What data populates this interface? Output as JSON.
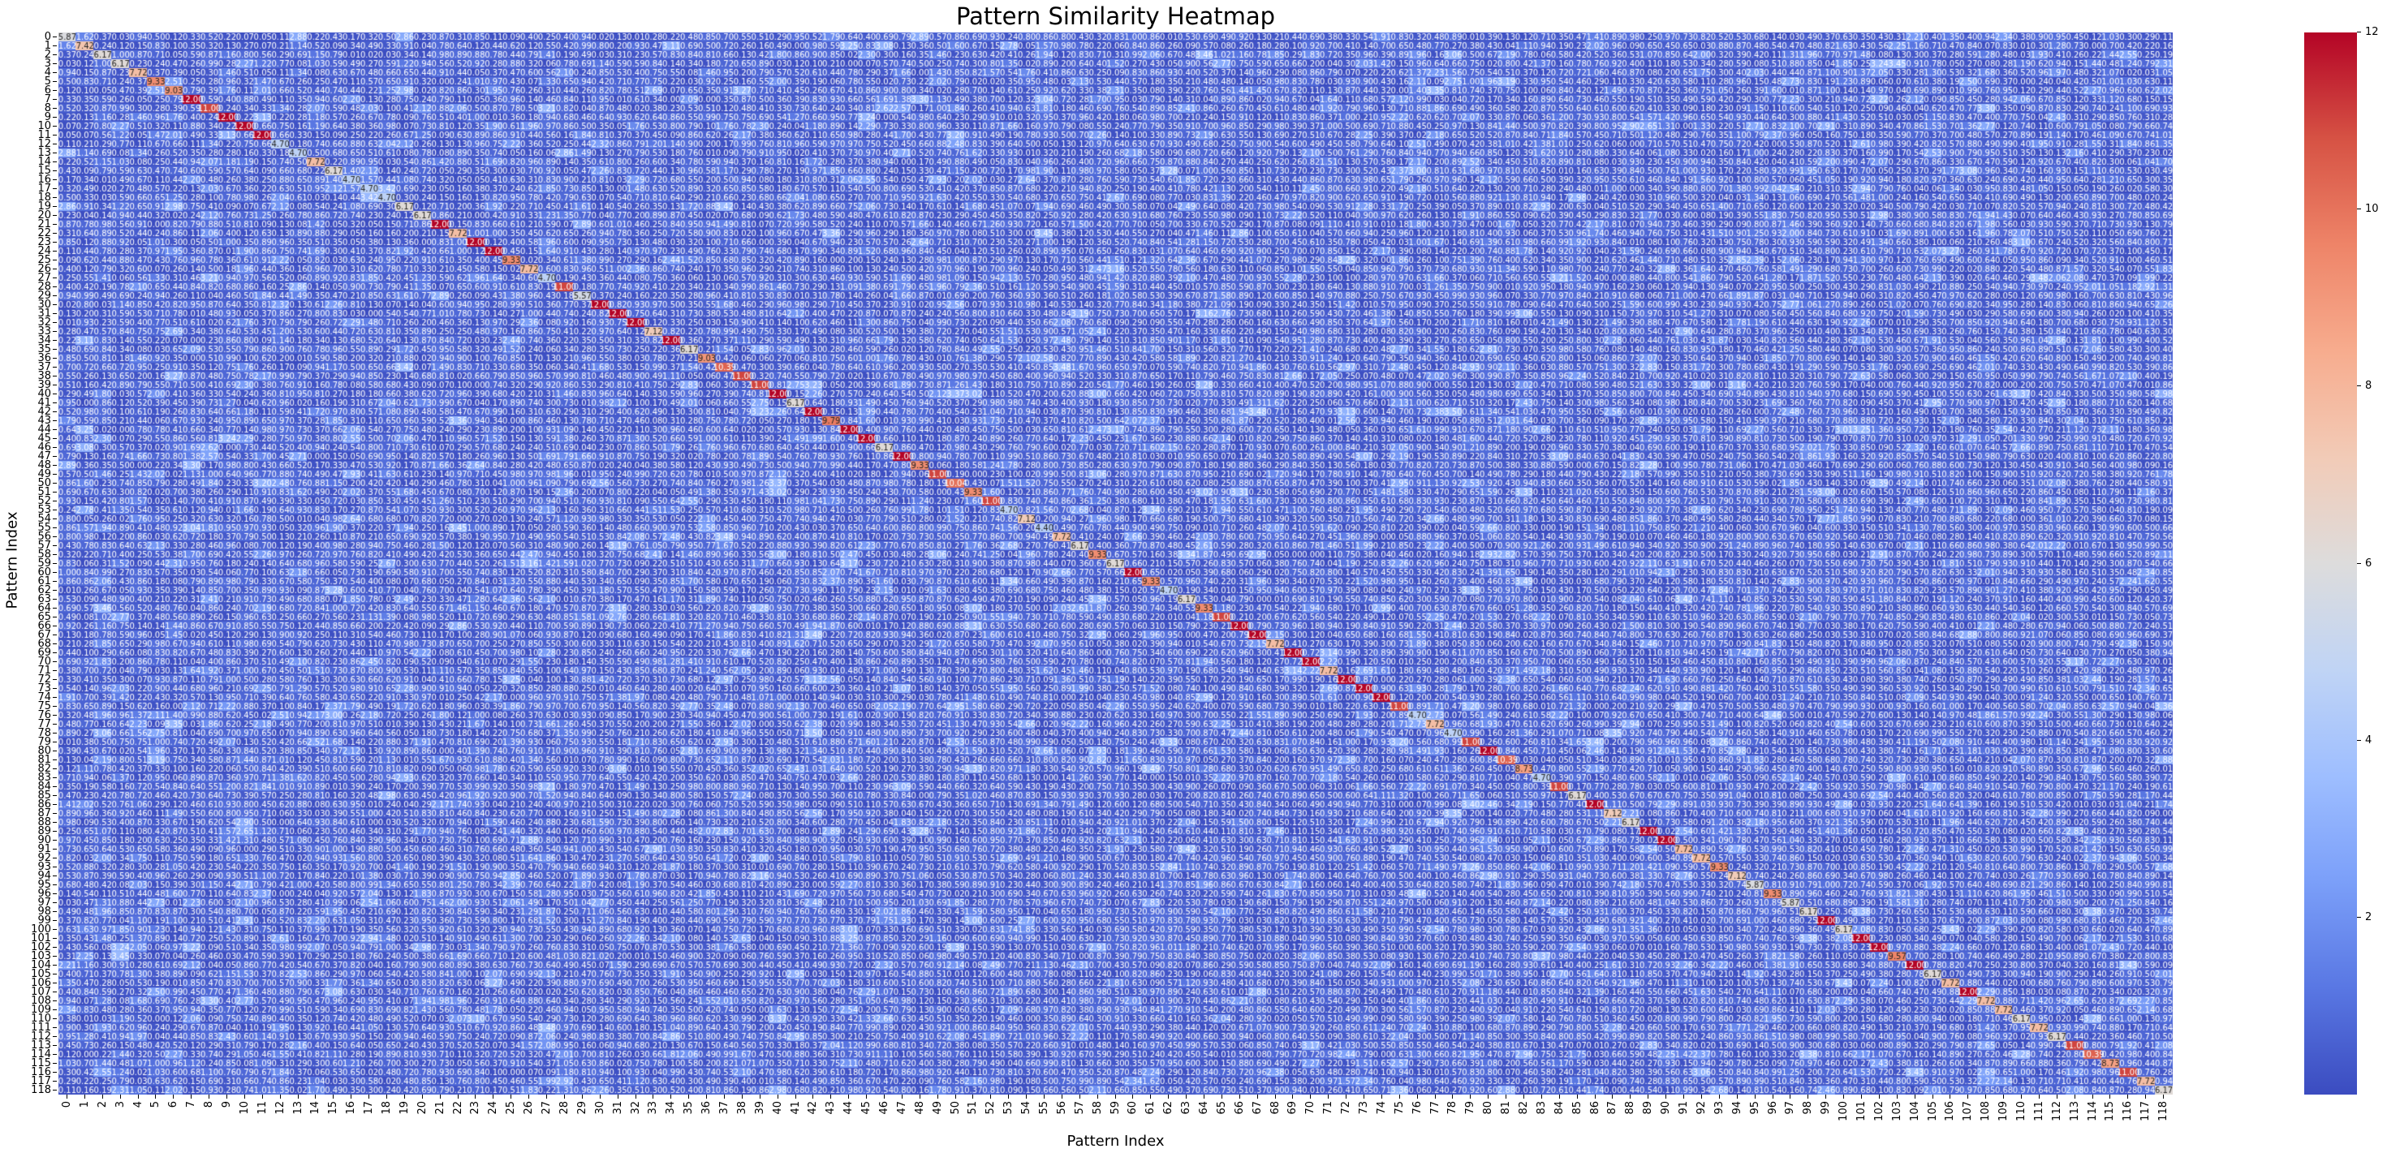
{
  "chart_data": {
    "type": "heatmap",
    "title": "Pattern Similarity Heatmap",
    "xlabel": "Pattern Index",
    "ylabel": "Pattern Index",
    "n": 119,
    "x_ticks": "0..118",
    "y_ticks": "0..118",
    "annotated": true,
    "value_format": "0.00",
    "symmetric": true,
    "colormap": "coolwarm",
    "vmin": 0,
    "vmax": 12,
    "colorbar_ticks": [
      2,
      4,
      6,
      8,
      10,
      12
    ],
    "diagonal": [
      5.87,
      7.42,
      6.17,
      6.17,
      7.72,
      9.33,
      9.03,
      12.0,
      11.0,
      12.0,
      12.0,
      12.0,
      4.7,
      4.7,
      7.72,
      6.17,
      4.7,
      4.7,
      4.7,
      6.17,
      6.17,
      12.0,
      7.72,
      12.0,
      12.0,
      9.33,
      7.72,
      4.7,
      11.0,
      5.57,
      12.0,
      12.0,
      12.0,
      7.12,
      12.0,
      6.17,
      9.03,
      10.39,
      11.0,
      11.0,
      12.0,
      6.17,
      12.0,
      9.79,
      12.0,
      12.0,
      6.17,
      12.0,
      9.33,
      11.0,
      10.04,
      9.33,
      11.0,
      4.7,
      7.12,
      4.4,
      7.72,
      6.17,
      9.33,
      6.17,
      12.0,
      9.33,
      4.7,
      6.17,
      9.33,
      11.0,
      12.0,
      12.0,
      7.72,
      12.0,
      12.0,
      7.72,
      12.0,
      12.0,
      12.0,
      11.0,
      4.7,
      7.72,
      4.7,
      11.0,
      12.0,
      10.39,
      8.73,
      4.7,
      11.0,
      6.17,
      12.0,
      7.12,
      6.17,
      12.0,
      12.0,
      7.72,
      7.72,
      9.33,
      7.12,
      5.87,
      9.33,
      5.87,
      6.17,
      12.0,
      6.17,
      12.0,
      12.0,
      9.57,
      12.0,
      6.17,
      7.72,
      12.0,
      7.72,
      7.72,
      6.17,
      7.72,
      6.17,
      11.0,
      10.39,
      8.73,
      11.0,
      7.72,
      6.17
    ],
    "known_rows": {
      "0": [
        5.87,
        1.62,
        0.37,
        0.03,
        0.94,
        0.5,
        0.12,
        0.33,
        0.52,
        0.22,
        0.07,
        0.05,
        0.11,
        2.88,
        0.22
      ],
      "1": [
        1.62,
        7.42,
        0.24,
        0.12,
        0.15,
        0.83,
        0.1,
        0.35,
        0.32,
        0.13,
        0.27,
        0.07,
        0.21,
        1.14,
        0.52
      ],
      "2": [
        0.37,
        0.24,
        6.17,
        1.0,
        0.87,
        0.71,
        0.05,
        0.59,
        0.87,
        1.16,
        0.8,
        0.56,
        0.29,
        0.69,
        1.15
      ],
      "3": [
        0.03,
        0.12,
        1.0,
        6.17,
        0.23,
        0.24,
        0.47,
        0.26,
        0.99,
        0.28,
        2.27,
        1.22,
        0.77,
        0.08,
        1.03
      ],
      "4": [
        0.94,
        0.15,
        0.87,
        0.23,
        7.72,
        0.37,
        0.39,
        0.05,
        0.3,
        1.46,
        0.51,
        0.05,
        0.11,
        1.34,
        0.08
      ],
      "5": [
        0.5,
        0.83,
        0.71,
        0.24,
        0.37,
        9.33,
        2.51,
        0.25,
        0.28,
        0.96,
        0.32,
        1.47,
        0.67,
        0.26,
        0.25
      ],
      "6": [
        0.12,
        0.1,
        0.05,
        0.47,
        0.39,
        2.51,
        9.03,
        0.79,
        0.39,
        1.76,
        0.11,
        2.01,
        0.66,
        0.52,
        0.44
      ],
      "7": [
        0.33,
        0.35,
        0.59,
        0.26,
        0.05,
        0.25,
        0.79,
        12.0,
        0.59,
        0.4,
        0.88,
        0.49,
        0.11,
        0.35,
        0.94
      ],
      "8": [
        0.52,
        0.32,
        0.87,
        0.99,
        0.3,
        0.28,
        0.39,
        0.59,
        11.0,
        0.24,
        0.34,
        0.33,
        1.34,
        0.28,
        2.07
      ],
      "9": [
        0.22,
        0.13,
        1.16,
        0.28,
        1.46,
        0.96,
        1.76,
        0.4,
        0.24,
        12.0,
        0.22,
        3.13,
        0.22,
        0.28,
        1.18
      ],
      "10": [
        0.07,
        0.27,
        0.8,
        2.27,
        0.51,
        0.32,
        0.11,
        0.88,
        0.34,
        0.22,
        12.0,
        0.66,
        0.75,
        0.16,
        1.19
      ],
      "11": [
        0.05,
        0.07,
        0.56,
        1.22,
        0.05,
        1.47,
        2.01,
        0.49,
        0.33,
        3.13,
        0.66,
        12.0,
        0.66,
        0.33,
        0.15
      ],
      "12": [
        0.11,
        0.21,
        0.29,
        0.77,
        0.11,
        0.67,
        0.66,
        0.11,
        1.34,
        0.22,
        0.75,
        0.66,
        4.7,
        0.18,
        0.74
      ],
      "13": [
        2.88,
        1.14,
        0.69,
        0.08,
        1.34,
        0.26,
        0.52,
        0.35,
        0.28,
        0.28,
        0.16,
        0.33,
        0.18,
        4.7,
        0.5
      ]
    },
    "known_last_row_118": [
      0.11,
      0.16,
      0.19,
      2.31,
      1.05,
      0.11,
      2.02,
      0.15,
      0.93,
      0.28,
      0.74,
      1.01,
      1.35,
      0.02,
      1.7,
      0.49,
      0.35,
      0.3,
      0.24
    ],
    "known_rows_tail_cols": {
      "113": [
        0.45,
        0.73,
        0.26,
        0.15,
        0.48,
        0.42,
        0.52,
        0.12,
        0.29,
        0.31,
        0.79,
        0.17,
        0.28,
        2.16,
        0.4,
        0.15,
        0.64,
        0.05,
        0.65
      ],
      "114": [
        0.12,
        0.0,
        0.22,
        1.44,
        0.32,
        0.5,
        2.27,
        0.33,
        0.74,
        0.29,
        1.05,
        0.46,
        1.55,
        0.41,
        0.82,
        1.11,
        0.28,
        0.19,
        0.89
      ],
      "115": [
        1.03,
        0.7,
        1.44,
        0.48,
        1.07,
        1.0,
        0.96,
        1.12,
        0.24,
        0.85,
        0.08,
        1.09,
        0.31,
        0.29,
        0.3,
        0.6,
        1.21,
        0.26,
        0.7
      ],
      "116": [
        0.3,
        0.42,
        2.55,
        1.24,
        0.02,
        1.03,
        0.6,
        0.68,
        1.1,
        0.76,
        0.79,
        0.67,
        1.84,
        0.37,
        0.06,
        0.53,
        0.65,
        0.02,
        0.48
      ],
      "117": [
        0.29,
        0.22,
        0.25,
        0.79,
        0.03,
        0.63,
        0.62,
        0.15,
        0.69,
        0.31,
        0.66,
        0.74,
        0.86,
        0.23,
        1.04,
        0.03,
        0.3,
        0.58,
        0.02
      ]
    }
  }
}
